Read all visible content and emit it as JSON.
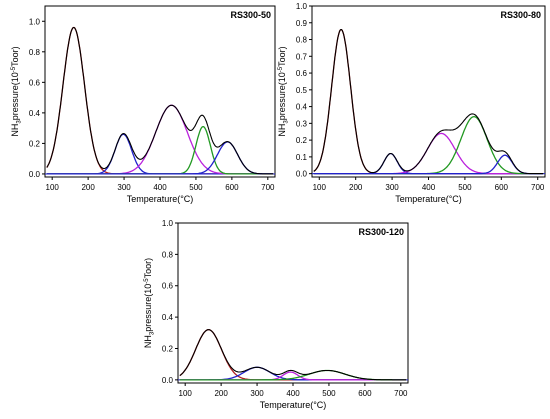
{
  "chart_data": [
    {
      "type": "line",
      "title": "RS300-50",
      "xlabel": "Temperature(°C)",
      "ylabel": {
        "pre": "NH",
        "sub": "3",
        "mid": "pressure(10",
        "sup": "-5",
        "post": "Toor)"
      },
      "xlim": [
        80,
        720
      ],
      "ylim": [
        -0.02,
        1.1
      ],
      "xticks": [
        100,
        200,
        300,
        400,
        500,
        600,
        700
      ],
      "yticks": [
        0.0,
        0.2,
        0.4,
        0.6,
        0.8,
        1.0
      ],
      "grid": false,
      "peaks": [
        {
          "center": 160,
          "height": 0.96,
          "width": 30,
          "color": "#b22222"
        },
        {
          "center": 298,
          "height": 0.26,
          "width": 23,
          "color": "#2222cc"
        },
        {
          "center": 432,
          "height": 0.45,
          "width": 44,
          "color": "#bb22dd"
        },
        {
          "center": 520,
          "height": 0.31,
          "width": 20,
          "color": "#229922"
        },
        {
          "center": 588,
          "height": 0.21,
          "width": 28,
          "color": "#2222cc"
        }
      ],
      "envelope_color": "#000000"
    },
    {
      "type": "line",
      "title": "RS300-80",
      "xlabel": "Temperature(°C)",
      "ylabel": {
        "pre": "NH",
        "sub": "3",
        "mid": "pressure(10",
        "sup": "-5",
        "post": "Toor)"
      },
      "xlim": [
        80,
        720
      ],
      "ylim": [
        -0.02,
        1.0
      ],
      "xticks": [
        100,
        200,
        300,
        400,
        500,
        600,
        700
      ],
      "yticks": [
        0.0,
        0.1,
        0.2,
        0.3,
        0.4,
        0.5,
        0.6,
        0.7,
        0.8,
        0.9,
        1.0
      ],
      "grid": false,
      "peaks": [
        {
          "center": 160,
          "height": 0.86,
          "width": 26,
          "color": "#b22222"
        },
        {
          "center": 296,
          "height": 0.12,
          "width": 18,
          "color": "#2222cc"
        },
        {
          "center": 435,
          "height": 0.24,
          "width": 38,
          "color": "#bb22dd"
        },
        {
          "center": 525,
          "height": 0.34,
          "width": 36,
          "color": "#229922"
        },
        {
          "center": 610,
          "height": 0.11,
          "width": 20,
          "color": "#2222cc"
        }
      ],
      "envelope_color": "#000000"
    },
    {
      "type": "line",
      "title": "RS300-120",
      "xlabel": "Temperature(°C)",
      "ylabel": {
        "pre": "NH",
        "sub": "3",
        "mid": "pressure(10",
        "sup": "-5",
        "post": "Toor)"
      },
      "xlim": [
        80,
        720
      ],
      "ylim": [
        -0.02,
        1.0
      ],
      "xticks": [
        100,
        200,
        300,
        400,
        500,
        600,
        700
      ],
      "yticks": [
        0.0,
        0.2,
        0.4,
        0.6,
        0.8,
        1.0
      ],
      "grid": false,
      "peaks": [
        {
          "center": 165,
          "height": 0.32,
          "width": 36,
          "color": "#b22222"
        },
        {
          "center": 300,
          "height": 0.08,
          "width": 36,
          "color": "#2222cc"
        },
        {
          "center": 393,
          "height": 0.05,
          "width": 20,
          "color": "#bb22dd"
        },
        {
          "center": 495,
          "height": 0.06,
          "width": 50,
          "color": "#229922"
        }
      ],
      "envelope_color": "#000000"
    }
  ]
}
